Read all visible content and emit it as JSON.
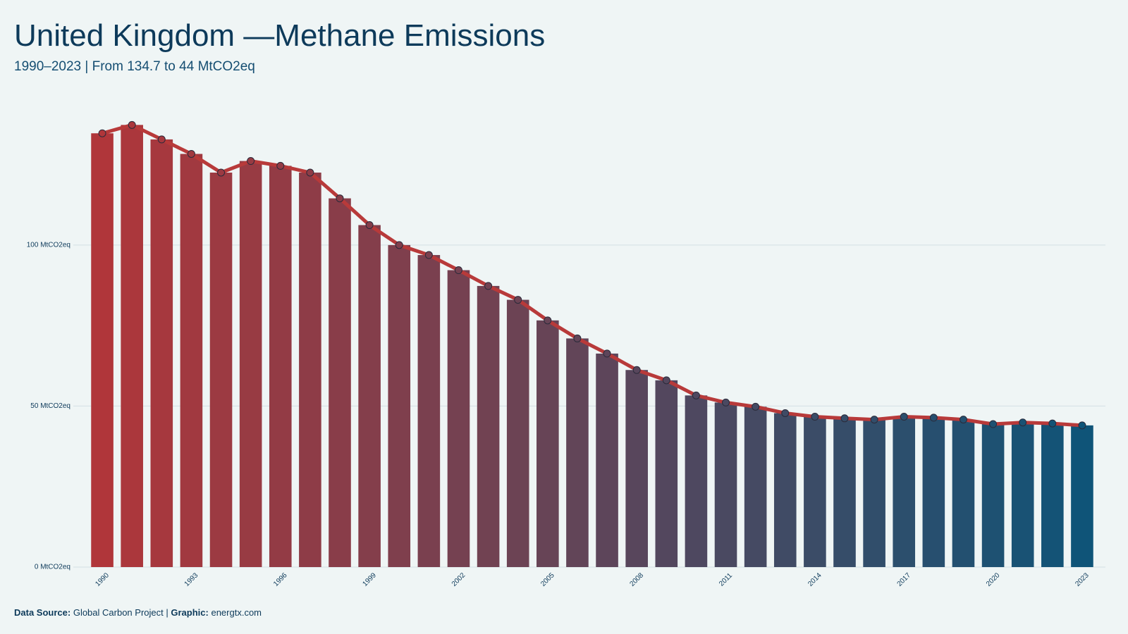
{
  "chart_data": {
    "type": "bar-line",
    "title": "United Kingdom —Methane Emissions",
    "subtitle": "1990–2023 | From 134.7 to 44 MtCO2eq",
    "x": [
      1990,
      1991,
      1992,
      1993,
      1994,
      1995,
      1996,
      1997,
      1998,
      1999,
      2000,
      2001,
      2002,
      2003,
      2004,
      2005,
      2006,
      2007,
      2008,
      2009,
      2010,
      2011,
      2012,
      2013,
      2014,
      2015,
      2016,
      2017,
      2018,
      2019,
      2020,
      2021,
      2022,
      2023
    ],
    "values": [
      134.7,
      137.3,
      132.8,
      128.3,
      122.5,
      126.1,
      124.6,
      122.5,
      114.5,
      106.2,
      100.0,
      96.9,
      92.2,
      87.3,
      83.0,
      76.6,
      71.0,
      66.3,
      61.2,
      58.0,
      53.3,
      51.1,
      49.8,
      47.8,
      46.7,
      46.2,
      45.8,
      46.7,
      46.4,
      45.8,
      44.4,
      44.9,
      44.6,
      44.0
    ],
    "xticks": [
      1990,
      1993,
      1996,
      1999,
      2002,
      2005,
      2008,
      2011,
      2014,
      2017,
      2020,
      2023
    ],
    "ylim": [
      0,
      140
    ],
    "yticks": [
      {
        "value": 0,
        "label": "0 MtCO2eq"
      },
      {
        "value": 50,
        "label": "50 MtCO2eq"
      },
      {
        "value": 100,
        "label": "100 MtCO2eq"
      }
    ],
    "grid": true,
    "color_start": "#b0363a",
    "color_end": "#0f5478",
    "line_color": "#b83a3a",
    "footer": {
      "source_label": "Data Source:",
      "source": "Global Carbon Project",
      "separator": "|",
      "graphic_label": "Graphic:",
      "graphic": "energtx.com"
    }
  }
}
